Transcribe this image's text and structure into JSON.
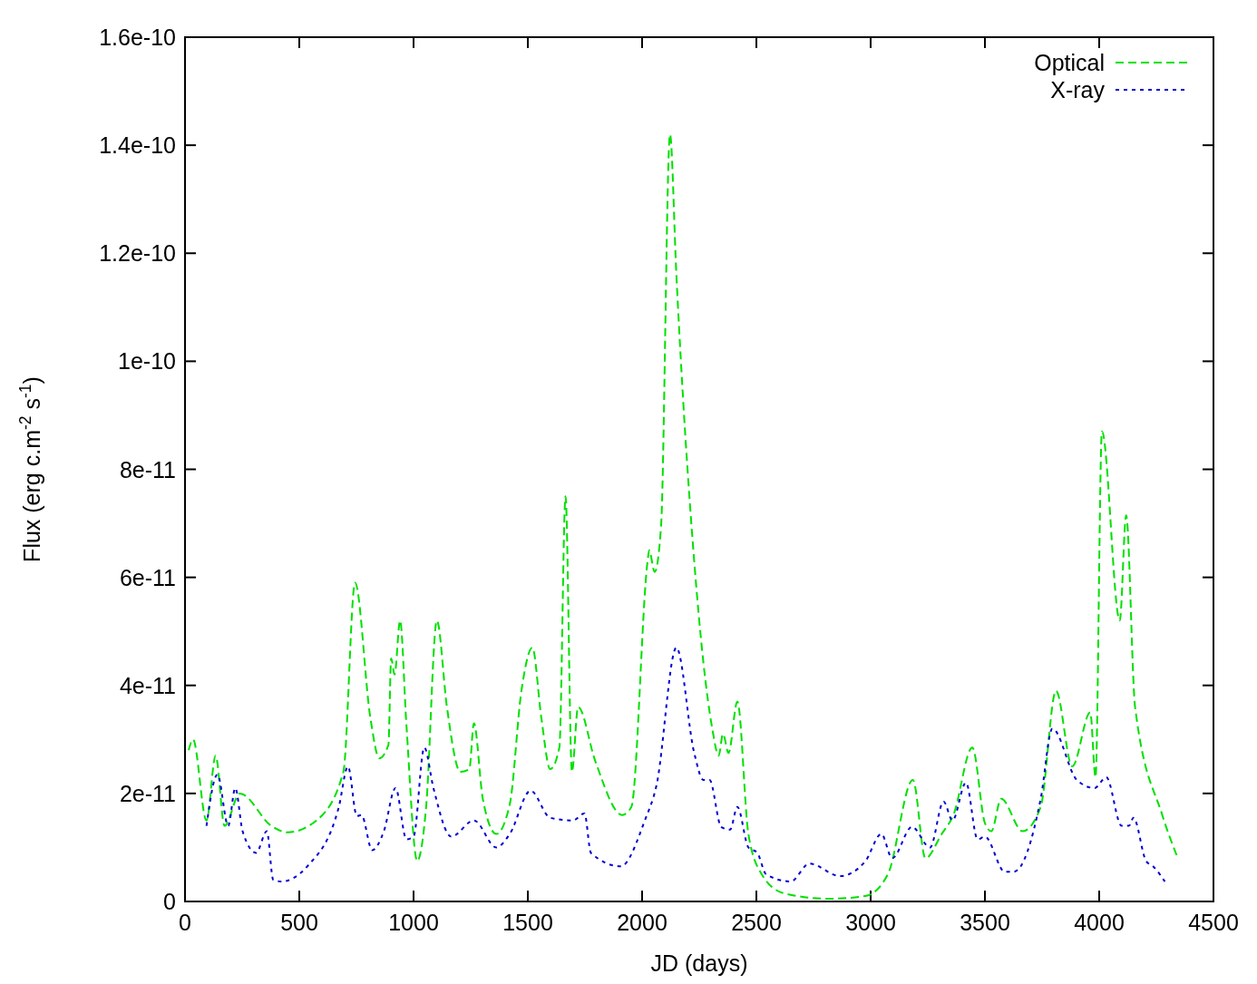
{
  "chart_data": {
    "type": "line",
    "xlabel": "JD (days)",
    "ylabel": "Flux (erg c.m$^{-2}$ s$^{-1}$)",
    "xlim": [
      0,
      4500
    ],
    "xticks": [
      0,
      500,
      1000,
      1500,
      2000,
      2500,
      3000,
      3500,
      4000,
      4500
    ],
    "ylim": [
      0,
      1.6e-10
    ],
    "yticks": [
      0,
      2e-11,
      4e-11,
      6e-11,
      8e-11,
      1e-10,
      1.2e-10,
      1.4e-10,
      1.6e-10
    ],
    "grid": false,
    "legend": "top right",
    "series": [
      {
        "name": "Optical",
        "color": "#00e000",
        "line_style": "dashed",
        "x": [
          16,
          35,
          94,
          134,
          173,
          240,
          378,
          449,
          575,
          693,
          744,
          811,
          850,
          890,
          902,
          917,
          941,
          969,
          1016,
          1055,
          1102,
          1146,
          1205,
          1244,
          1264,
          1303,
          1362,
          1421,
          1472,
          1520,
          1559,
          1598,
          1638,
          1665,
          1693,
          1720,
          1795,
          1913,
          1953,
          2024,
          2031,
          2055,
          2083,
          2122,
          2150,
          2228,
          2307,
          2335,
          2354,
          2378,
          2417,
          2465,
          2524,
          2622,
          2819,
          2976,
          3075,
          3185,
          3240,
          3311,
          3362,
          3445,
          3500,
          3528,
          3571,
          3665,
          3744,
          3811,
          3882,
          3961,
          3984,
          4012,
          4090,
          4118,
          4157,
          4276,
          4346
        ],
        "values": [
          2.8e-11,
          3e-11,
          1.5e-11,
          2.7e-11,
          1.4e-11,
          2e-11,
          1.4e-11,
          1.28e-11,
          1.5e-11,
          2.4e-11,
          5.9e-11,
          3.4e-11,
          2.65e-11,
          2.9e-11,
          4.5e-11,
          4.2e-11,
          5.2e-11,
          3.25e-11,
          7.5e-12,
          1.75e-11,
          5.2e-11,
          3.6e-11,
          2.4e-11,
          2.45e-11,
          3.3e-11,
          1.9e-11,
          1.25e-11,
          1.8e-11,
          3.9e-11,
          4.7e-11,
          3.4e-11,
          2.45e-11,
          2.85e-11,
          7.5e-11,
          2.4e-11,
          3.6e-11,
          2.6e-11,
          1.6e-11,
          1.75e-11,
          6.3e-11,
          6.5e-11,
          6.1e-11,
          6.95e-11,
          1.42e-10,
          1.16e-10,
          6.3e-11,
          3.2e-11,
          2.7e-11,
          3.1e-11,
          2.75e-11,
          3.7e-11,
          1.25e-11,
          5e-12,
          1.5e-12,
          5e-13,
          1e-12,
          5e-12,
          2.25e-11,
          8e-12,
          1.25e-11,
          1.6e-11,
          2.85e-11,
          1.45e-11,
          1.3e-11,
          1.9e-11,
          1.3e-11,
          1.75e-11,
          3.9e-11,
          2.5e-11,
          3.5e-11,
          2.3e-11,
          8.7e-11,
          5.2e-11,
          7.15e-11,
          3.6e-11,
          1.6e-11,
          7.8e-12
        ]
      },
      {
        "name": "X-ray",
        "color": "#0000d0",
        "line_style": "dotted",
        "x": [
          94,
          142,
          189,
          220,
          252,
          311,
          358,
          386,
          421,
          535,
          673,
          713,
          752,
          772,
          819,
          870,
          921,
          969,
          1000,
          1047,
          1087,
          1165,
          1264,
          1362,
          1421,
          1512,
          1598,
          1697,
          1748,
          1776,
          1906,
          2012,
          2063,
          2150,
          2228,
          2268,
          2295,
          2346,
          2385,
          2417,
          2465,
          2504,
          2543,
          2650,
          2732,
          2866,
          2976,
          3047,
          3094,
          3181,
          3260,
          3319,
          3358,
          3417,
          3468,
          3500,
          3587,
          3626,
          3744,
          3795,
          3902,
          3980,
          4031,
          4098,
          4130,
          4150,
          4205,
          4236,
          4287
        ],
        "values": [
          1.4e-11,
          2.35e-11,
          1.4e-11,
          2.1e-11,
          1.3e-11,
          9e-12,
          1.3e-11,
          4e-12,
          3.7e-12,
          6.5e-12,
          1.75e-11,
          2.5e-11,
          1.58e-11,
          1.6e-11,
          9.5e-12,
          1.3e-11,
          2.1e-11,
          1.15e-11,
          1.2e-11,
          2.85e-11,
          2.1e-11,
          1.2e-11,
          1.5e-11,
          1e-11,
          1.25e-11,
          2.05e-11,
          1.55e-11,
          1.5e-11,
          1.63e-11,
          9e-12,
          6.5e-12,
          1.5e-11,
          2.15e-11,
          4.7e-11,
          2.75e-11,
          2.25e-11,
          2.25e-11,
          1.38e-11,
          1.33e-11,
          1.75e-11,
          1e-11,
          9e-12,
          5e-12,
          3.7e-12,
          7e-12,
          4.7e-12,
          7.4e-12,
          1.25e-11,
          8e-12,
          1.38e-11,
          1e-11,
          1.85e-11,
          1.5e-11,
          2.2e-11,
          1.15e-11,
          1.2e-11,
          5.5e-12,
          5.5e-12,
          1.9e-11,
          3.2e-11,
          2.25e-11,
          2.1e-11,
          2.3e-11,
          1.4e-11,
          1.4e-11,
          1.55e-11,
          7.5e-12,
          6.5e-12,
          3.7e-12
        ]
      }
    ]
  }
}
